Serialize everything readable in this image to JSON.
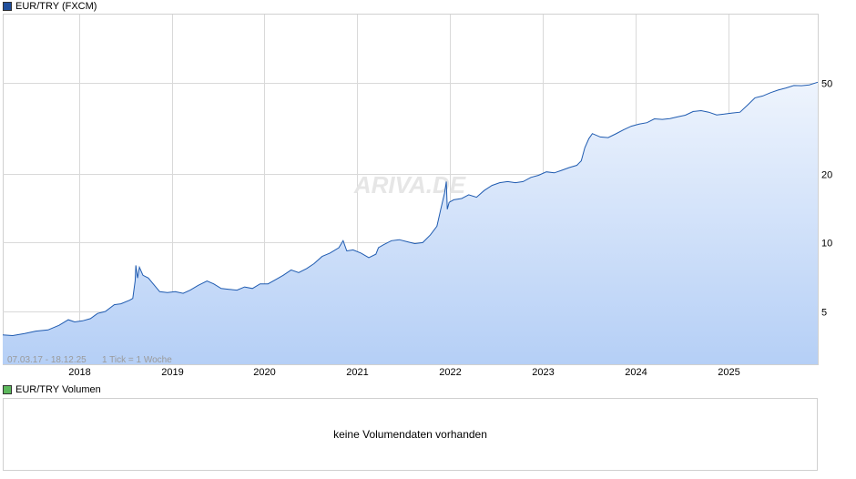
{
  "price_panel": {
    "legend_label": "EUR/TRY (FXCM)",
    "legend_color": "#1f4e9c",
    "range_info": "07.03.17 - 18.12.25",
    "tick_info": "1 Tick = 1 Woche",
    "watermark": "ARIVA.DE"
  },
  "volume_panel": {
    "legend_label": "EUR/TRY Volumen",
    "legend_color": "#5cb85c",
    "empty_message": "keine Volumendaten vorhanden"
  },
  "colors": {
    "line": "#1f5bb0",
    "fill_top": "#eef4fd",
    "fill_bottom": "#b5cff6",
    "grid": "#d9d9d9"
  },
  "chart_data": {
    "type": "area",
    "title": "EUR/TRY (FXCM)",
    "scale": "log",
    "grid": true,
    "x_ticks": [
      "2018",
      "2019",
      "2020",
      "2021",
      "2022",
      "2023",
      "2024",
      "2025"
    ],
    "y_ticks": [
      5,
      10,
      20,
      50
    ],
    "x_range": [
      "2017-03-07",
      "2025-12-18"
    ],
    "series": [
      {
        "name": "EUR/TRY (FXCM)",
        "points": [
          [
            "2017-03-07",
            3.95
          ],
          [
            "2017-04-15",
            3.92
          ],
          [
            "2017-06-01",
            4.0
          ],
          [
            "2017-07-15",
            4.1
          ],
          [
            "2017-09-01",
            4.15
          ],
          [
            "2017-10-15",
            4.35
          ],
          [
            "2017-11-20",
            4.6
          ],
          [
            "2017-12-15",
            4.5
          ],
          [
            "2018-01-15",
            4.55
          ],
          [
            "2018-02-15",
            4.65
          ],
          [
            "2018-03-15",
            4.9
          ],
          [
            "2018-04-15",
            5.0
          ],
          [
            "2018-05-20",
            5.35
          ],
          [
            "2018-06-15",
            5.4
          ],
          [
            "2018-07-20",
            5.6
          ],
          [
            "2018-08-01",
            5.7
          ],
          [
            "2018-08-10",
            6.8
          ],
          [
            "2018-08-13",
            7.95
          ],
          [
            "2018-08-20",
            7.0
          ],
          [
            "2018-08-27",
            7.8
          ],
          [
            "2018-09-10",
            7.2
          ],
          [
            "2018-10-01",
            7.0
          ],
          [
            "2018-10-20",
            6.6
          ],
          [
            "2018-11-15",
            6.1
          ],
          [
            "2018-12-15",
            6.05
          ],
          [
            "2019-01-15",
            6.1
          ],
          [
            "2019-02-15",
            6.0
          ],
          [
            "2019-03-15",
            6.2
          ],
          [
            "2019-04-15",
            6.5
          ],
          [
            "2019-05-20",
            6.8
          ],
          [
            "2019-06-15",
            6.6
          ],
          [
            "2019-07-15",
            6.3
          ],
          [
            "2019-08-15",
            6.25
          ],
          [
            "2019-09-15",
            6.2
          ],
          [
            "2019-10-15",
            6.4
          ],
          [
            "2019-11-15",
            6.3
          ],
          [
            "2019-12-15",
            6.6
          ],
          [
            "2020-01-15",
            6.6
          ],
          [
            "2020-02-15",
            6.9
          ],
          [
            "2020-03-15",
            7.2
          ],
          [
            "2020-04-15",
            7.6
          ],
          [
            "2020-05-15",
            7.4
          ],
          [
            "2020-06-15",
            7.7
          ],
          [
            "2020-07-15",
            8.1
          ],
          [
            "2020-08-15",
            8.7
          ],
          [
            "2020-09-15",
            9.0
          ],
          [
            "2020-10-20",
            9.5
          ],
          [
            "2020-11-06",
            10.2
          ],
          [
            "2020-11-20",
            9.2
          ],
          [
            "2020-12-15",
            9.3
          ],
          [
            "2021-01-15",
            9.0
          ],
          [
            "2021-02-15",
            8.6
          ],
          [
            "2021-03-15",
            8.9
          ],
          [
            "2021-03-25",
            9.5
          ],
          [
            "2021-04-15",
            9.8
          ],
          [
            "2021-05-15",
            10.2
          ],
          [
            "2021-06-15",
            10.3
          ],
          [
            "2021-07-15",
            10.1
          ],
          [
            "2021-08-15",
            9.9
          ],
          [
            "2021-09-15",
            10.0
          ],
          [
            "2021-10-15",
            10.8
          ],
          [
            "2021-11-10",
            11.8
          ],
          [
            "2021-11-25",
            14.0
          ],
          [
            "2021-12-10",
            16.5
          ],
          [
            "2021-12-17",
            18.5
          ],
          [
            "2021-12-21",
            14.0
          ],
          [
            "2021-12-28",
            15.0
          ],
          [
            "2022-01-15",
            15.4
          ],
          [
            "2022-02-15",
            15.6
          ],
          [
            "2022-03-15",
            16.2
          ],
          [
            "2022-04-15",
            15.8
          ],
          [
            "2022-05-15",
            16.9
          ],
          [
            "2022-06-15",
            17.8
          ],
          [
            "2022-07-15",
            18.3
          ],
          [
            "2022-08-15",
            18.5
          ],
          [
            "2022-09-15",
            18.3
          ],
          [
            "2022-10-15",
            18.5
          ],
          [
            "2022-11-15",
            19.3
          ],
          [
            "2022-12-15",
            19.7
          ],
          [
            "2023-01-15",
            20.4
          ],
          [
            "2023-02-15",
            20.2
          ],
          [
            "2023-03-15",
            20.7
          ],
          [
            "2023-04-15",
            21.3
          ],
          [
            "2023-05-15",
            21.8
          ],
          [
            "2023-06-01",
            22.8
          ],
          [
            "2023-06-15",
            26.0
          ],
          [
            "2023-07-01",
            28.5
          ],
          [
            "2023-07-15",
            30.0
          ],
          [
            "2023-08-15",
            29.0
          ],
          [
            "2023-09-15",
            28.8
          ],
          [
            "2023-10-15",
            29.9
          ],
          [
            "2023-11-15",
            31.2
          ],
          [
            "2023-12-15",
            32.3
          ],
          [
            "2024-01-15",
            33.0
          ],
          [
            "2024-02-15",
            33.5
          ],
          [
            "2024-03-15",
            34.8
          ],
          [
            "2024-04-15",
            34.6
          ],
          [
            "2024-05-15",
            34.9
          ],
          [
            "2024-06-15",
            35.5
          ],
          [
            "2024-07-15",
            36.1
          ],
          [
            "2024-08-15",
            37.5
          ],
          [
            "2024-09-15",
            37.8
          ],
          [
            "2024-10-15",
            37.2
          ],
          [
            "2024-11-15",
            36.2
          ],
          [
            "2024-12-15",
            36.5
          ],
          [
            "2025-01-15",
            36.9
          ],
          [
            "2025-02-15",
            37.2
          ],
          [
            "2025-03-15",
            39.8
          ],
          [
            "2025-04-15",
            43.0
          ],
          [
            "2025-05-15",
            43.8
          ],
          [
            "2025-06-15",
            45.3
          ],
          [
            "2025-07-15",
            46.5
          ],
          [
            "2025-08-15",
            47.5
          ],
          [
            "2025-09-15",
            48.7
          ],
          [
            "2025-10-15",
            48.6
          ],
          [
            "2025-11-15",
            49.0
          ],
          [
            "2025-12-18",
            50.3
          ]
        ]
      }
    ]
  }
}
